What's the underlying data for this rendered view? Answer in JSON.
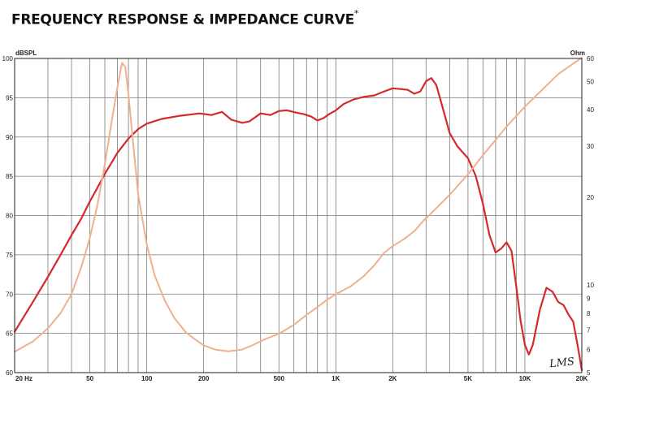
{
  "title": "FREQUENCY RESPONSE & IMPEDANCE CURVE",
  "title_mark": "*",
  "brand": "LMS",
  "chart_data": {
    "type": "line",
    "x_scale": "log",
    "xlim": [
      20,
      20000
    ],
    "ylim": [
      60,
      100
    ],
    "y2lim": [
      5,
      60
    ],
    "y2_scale": "log",
    "grid": true,
    "ylabel": "dBSPL",
    "y2label": "Ohm",
    "x_ticks": [
      {
        "value": 20,
        "label": "20 Hz"
      },
      {
        "value": 50,
        "label": "50"
      },
      {
        "value": 100,
        "label": "100"
      },
      {
        "value": 200,
        "label": "200"
      },
      {
        "value": 500,
        "label": "500"
      },
      {
        "value": 1000,
        "label": "1K"
      },
      {
        "value": 2000,
        "label": "2K"
      },
      {
        "value": 5000,
        "label": "5K"
      },
      {
        "value": 10000,
        "label": "10K"
      },
      {
        "value": 20000,
        "label": "20K"
      }
    ],
    "y_ticks": [
      {
        "value": 100,
        "label": "100"
      },
      {
        "value": 95,
        "label": "95"
      },
      {
        "value": 90,
        "label": "90"
      },
      {
        "value": 85,
        "label": "85"
      },
      {
        "value": 80,
        "label": "80"
      },
      {
        "value": 75,
        "label": "75"
      },
      {
        "value": 70,
        "label": "70"
      },
      {
        "value": 65,
        "label": "65"
      },
      {
        "value": 60,
        "label": "60"
      }
    ],
    "y2_ticks": [
      {
        "value": 60,
        "label": "60"
      },
      {
        "value": 50,
        "label": "50"
      },
      {
        "value": 40,
        "label": "40"
      },
      {
        "value": 30,
        "label": "30"
      },
      {
        "value": 20,
        "label": "20"
      },
      {
        "value": 10,
        "label": "10"
      },
      {
        "value": 9,
        "label": "9"
      },
      {
        "value": 8,
        "label": "8"
      },
      {
        "value": 7,
        "label": "7"
      },
      {
        "value": 6,
        "label": "6"
      },
      {
        "value": 5,
        "label": "5"
      }
    ],
    "series": [
      {
        "axis": "left",
        "color": "#d42a2e",
        "points": [
          [
            20,
            65.2
          ],
          [
            25,
            69
          ],
          [
            30,
            72.2
          ],
          [
            35,
            75
          ],
          [
            40,
            77.5
          ],
          [
            45,
            79.6
          ],
          [
            50,
            81.8
          ],
          [
            55,
            83.6
          ],
          [
            60,
            85.3
          ],
          [
            65,
            86.7
          ],
          [
            70,
            88
          ],
          [
            80,
            89.8
          ],
          [
            90,
            91
          ],
          [
            100,
            91.7
          ],
          [
            120,
            92.3
          ],
          [
            150,
            92.7
          ],
          [
            190,
            93
          ],
          [
            220,
            92.8
          ],
          [
            250,
            93.2
          ],
          [
            280,
            92.2
          ],
          [
            320,
            91.8
          ],
          [
            350,
            92
          ],
          [
            400,
            93
          ],
          [
            450,
            92.8
          ],
          [
            500,
            93.3
          ],
          [
            550,
            93.4
          ],
          [
            620,
            93.1
          ],
          [
            680,
            92.9
          ],
          [
            740,
            92.6
          ],
          [
            800,
            92.1
          ],
          [
            860,
            92.4
          ],
          [
            920,
            92.9
          ],
          [
            1000,
            93.4
          ],
          [
            1100,
            94.2
          ],
          [
            1250,
            94.8
          ],
          [
            1400,
            95.1
          ],
          [
            1600,
            95.3
          ],
          [
            1800,
            95.8
          ],
          [
            2000,
            96.2
          ],
          [
            2200,
            96.1
          ],
          [
            2400,
            96
          ],
          [
            2600,
            95.5
          ],
          [
            2800,
            95.8
          ],
          [
            3000,
            97.1
          ],
          [
            3200,
            97.5
          ],
          [
            3400,
            96.6
          ],
          [
            3600,
            94.5
          ],
          [
            4000,
            90.5
          ],
          [
            4400,
            88.8
          ],
          [
            5000,
            87.3
          ],
          [
            5500,
            85
          ],
          [
            6000,
            81.5
          ],
          [
            6500,
            77.5
          ],
          [
            7000,
            75.3
          ],
          [
            7500,
            75.8
          ],
          [
            8000,
            76.6
          ],
          [
            8500,
            75.5
          ],
          [
            9000,
            71
          ],
          [
            9500,
            66.5
          ],
          [
            10000,
            63.5
          ],
          [
            10500,
            62.3
          ],
          [
            11000,
            63.5
          ],
          [
            12000,
            68
          ],
          [
            13000,
            70.8
          ],
          [
            14000,
            70.3
          ],
          [
            15000,
            69
          ],
          [
            16000,
            68.6
          ],
          [
            17000,
            67.4
          ],
          [
            18000,
            66.5
          ],
          [
            19000,
            63.5
          ],
          [
            20000,
            60.3
          ]
        ]
      },
      {
        "axis": "right",
        "color": "#f0b08e",
        "points": [
          [
            20,
            5.9
          ],
          [
            25,
            6.4
          ],
          [
            30,
            7.1
          ],
          [
            35,
            8
          ],
          [
            40,
            9.3
          ],
          [
            45,
            11.5
          ],
          [
            50,
            14.5
          ],
          [
            55,
            19
          ],
          [
            60,
            26
          ],
          [
            65,
            36
          ],
          [
            70,
            48
          ],
          [
            74,
            58
          ],
          [
            77,
            56
          ],
          [
            80,
            45
          ],
          [
            85,
            30
          ],
          [
            90,
            20.5
          ],
          [
            100,
            13.8
          ],
          [
            110,
            10.8
          ],
          [
            125,
            8.8
          ],
          [
            140,
            7.7
          ],
          [
            160,
            6.9
          ],
          [
            180,
            6.5
          ],
          [
            200,
            6.2
          ],
          [
            230,
            6
          ],
          [
            270,
            5.92
          ],
          [
            320,
            6
          ],
          [
            360,
            6.2
          ],
          [
            420,
            6.5
          ],
          [
            500,
            6.8
          ],
          [
            600,
            7.3
          ],
          [
            700,
            7.9
          ],
          [
            800,
            8.4
          ],
          [
            900,
            8.9
          ],
          [
            1000,
            9.3
          ],
          [
            1200,
            9.9
          ],
          [
            1400,
            10.7
          ],
          [
            1600,
            11.7
          ],
          [
            1800,
            12.9
          ],
          [
            2000,
            13.6
          ],
          [
            2300,
            14.4
          ],
          [
            2600,
            15.3
          ],
          [
            2900,
            16.6
          ],
          [
            3300,
            18
          ],
          [
            4000,
            20.4
          ],
          [
            5000,
            24
          ],
          [
            6000,
            27.9
          ],
          [
            7000,
            31.5
          ],
          [
            8000,
            35
          ],
          [
            10000,
            41
          ],
          [
            12000,
            46
          ],
          [
            15000,
            53
          ],
          [
            20000,
            61
          ]
        ]
      }
    ]
  }
}
